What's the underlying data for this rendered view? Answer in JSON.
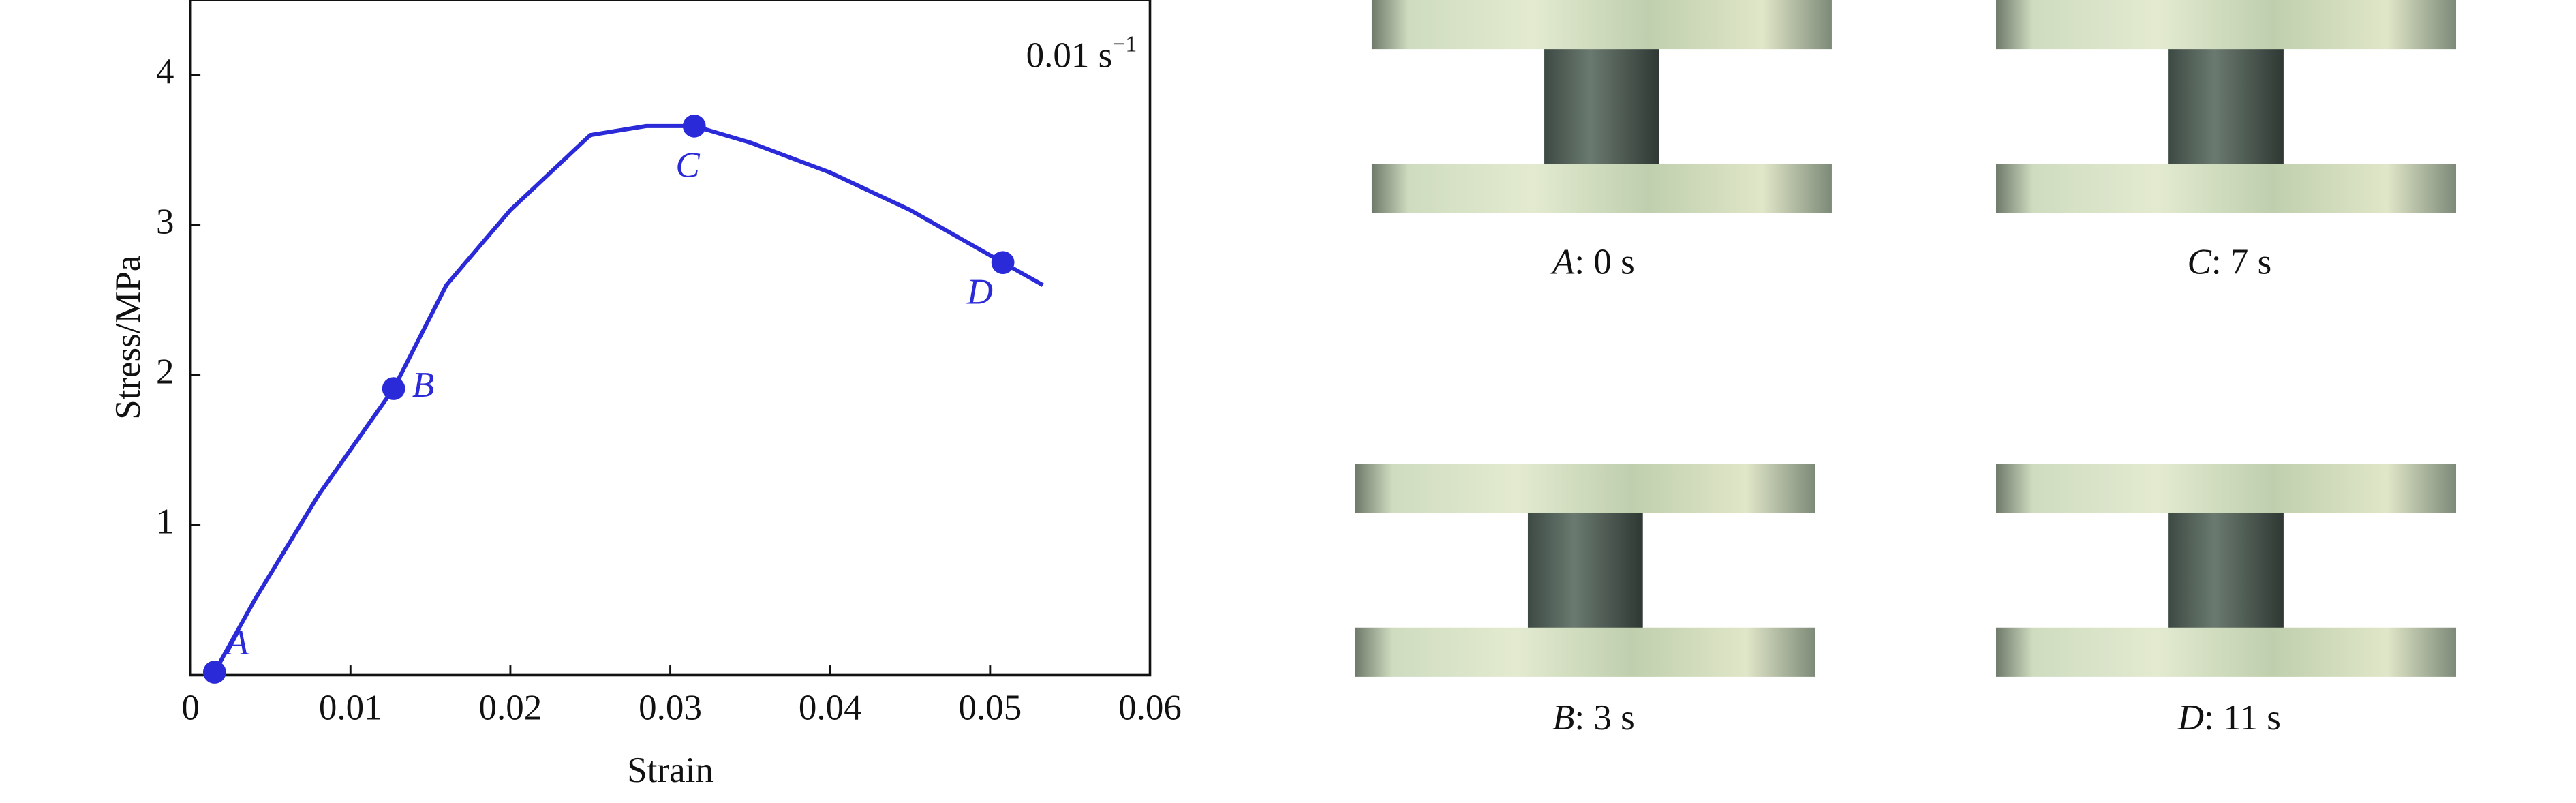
{
  "chart_data": {
    "type": "line",
    "x_label": "Strain",
    "y_label": "Stress/MPa",
    "annotation": {
      "text": "0.01 s",
      "superscript": "−1"
    },
    "color": "#2a2ad8",
    "x": [
      0.0015,
      0.004,
      0.008,
      0.0127,
      0.016,
      0.02,
      0.025,
      0.0285,
      0.0315,
      0.035,
      0.04,
      0.045,
      0.0508,
      0.0533
    ],
    "values": [
      0.02,
      0.5,
      1.2,
      1.91,
      2.6,
      3.1,
      3.6,
      3.66,
      3.66,
      3.55,
      3.35,
      3.1,
      2.75,
      2.6
    ],
    "points": [
      {
        "label": "A",
        "x": 0.0015,
        "y": 0.02
      },
      {
        "label": "B",
        "x": 0.0127,
        "y": 1.91
      },
      {
        "label": "C",
        "x": 0.0315,
        "y": 3.66
      },
      {
        "label": "D",
        "x": 0.0508,
        "y": 2.75
      }
    ],
    "xlim": [
      0,
      0.06
    ],
    "ylim": [
      0,
      4.5
    ],
    "xticks": [
      0,
      0.01,
      0.02,
      0.03,
      0.04,
      0.05,
      0.06
    ],
    "yticks": [
      1,
      2,
      3,
      4
    ]
  },
  "photos": [
    {
      "letter": "A",
      "text": ": 0 s"
    },
    {
      "letter": "C",
      "text": ": 7 s"
    },
    {
      "letter": "B",
      "text": ": 3 s"
    },
    {
      "letter": "D",
      "text": ": 11 s"
    }
  ]
}
